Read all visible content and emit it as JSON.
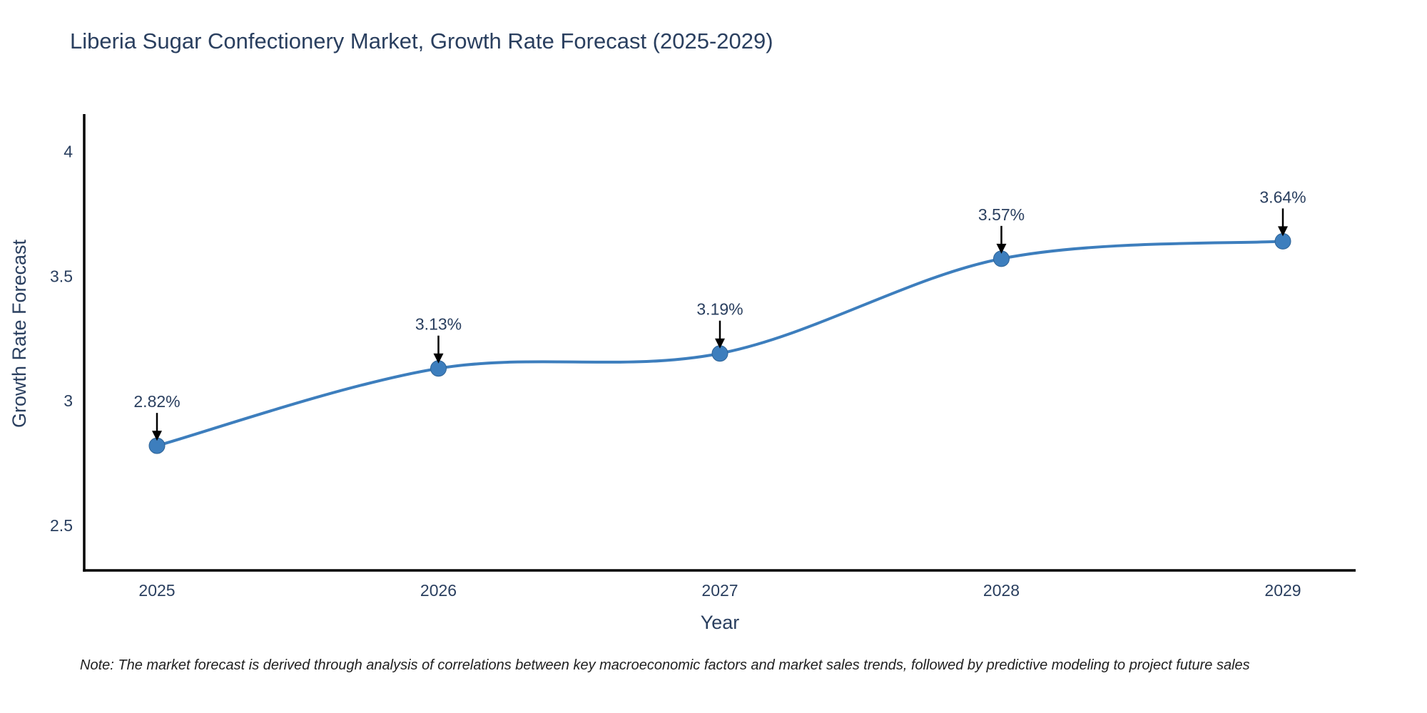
{
  "chart_data": {
    "type": "line",
    "title": "Liberia Sugar Confectionery Market, Growth Rate Forecast (2025-2029)",
    "xlabel": "Year",
    "ylabel": "Growth Rate Forecast",
    "categories": [
      "2025",
      "2026",
      "2027",
      "2028",
      "2029"
    ],
    "series": [
      {
        "name": "Growth Rate Forecast",
        "values": [
          2.82,
          3.13,
          3.19,
          3.57,
          3.64
        ]
      }
    ],
    "data_labels": [
      "2.82%",
      "3.13%",
      "3.19%",
      "3.57%",
      "3.64%"
    ],
    "ytick_labels": [
      "2.5",
      "3",
      "3.5",
      "4"
    ],
    "ytick_values": [
      2.5,
      3,
      3.5,
      4
    ],
    "ylim": [
      2.32,
      4.15
    ],
    "grid": false,
    "legend_position": "none",
    "line_style": "spline",
    "annotations_have_arrows": true,
    "colors": {
      "line": "#3d7ebd",
      "marker": "#3d7ebd",
      "marker_edge": "#2e6396",
      "axis": "#000000",
      "tick_text": "#2a3f5f",
      "annotation_text": "#2a3f5f",
      "arrow": "#000000"
    }
  },
  "note": {
    "text": "Note: The market forecast is derived through analysis of correlations between key macroeconomic factors and market sales trends, followed by predictive modeling to project future sales"
  }
}
